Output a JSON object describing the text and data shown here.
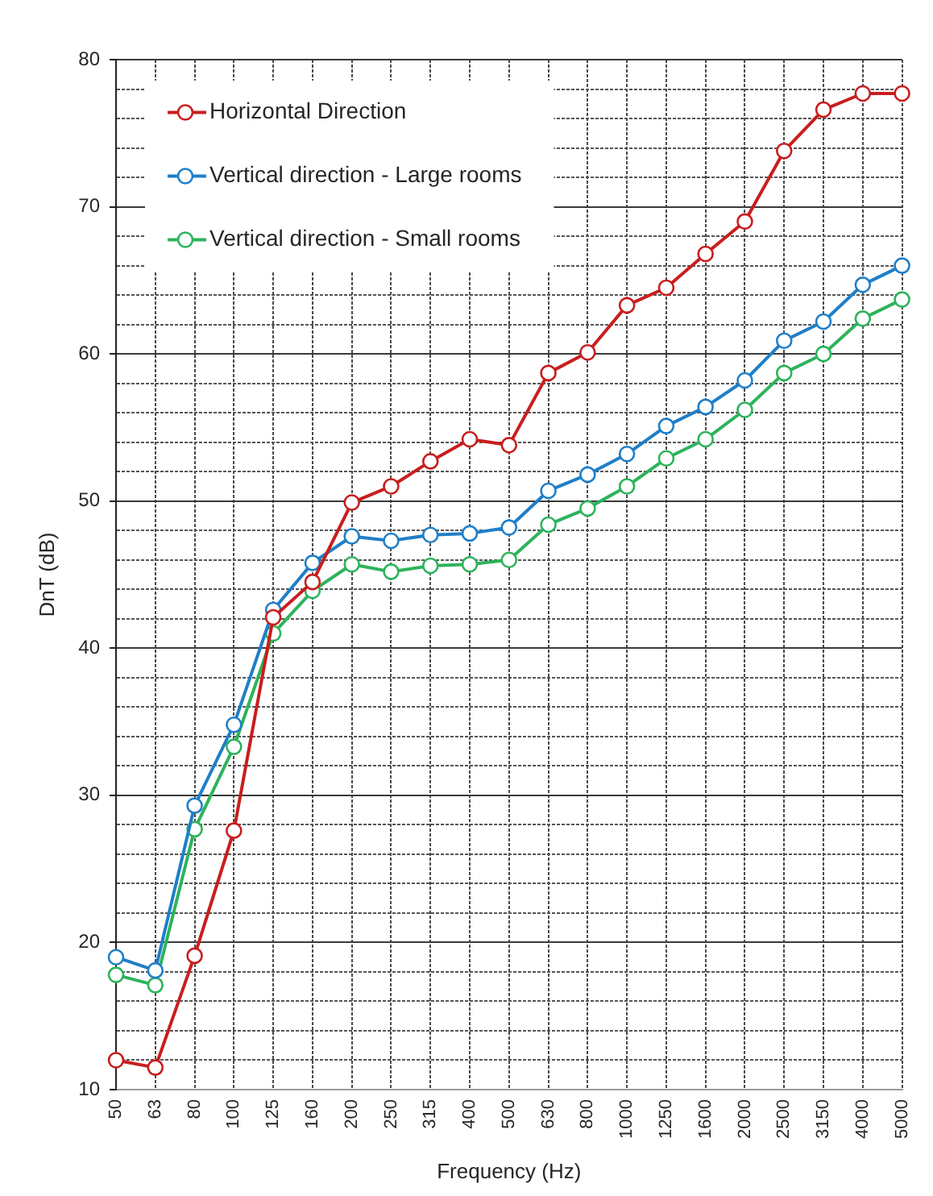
{
  "chart_data": {
    "type": "line",
    "xlabel": "Frequency (Hz)",
    "ylabel": "DnT (dB)",
    "categories": [
      "50",
      "63",
      "80",
      "100",
      "125",
      "160",
      "200",
      "250",
      "315",
      "400",
      "500",
      "630",
      "800",
      "1000",
      "1250",
      "1600",
      "2000",
      "2500",
      "3150",
      "4000",
      "5000"
    ],
    "series": [
      {
        "name": "Horizontal Direction",
        "color": "#c81e1e",
        "values": [
          12.0,
          11.5,
          19.1,
          27.6,
          42.1,
          44.5,
          49.9,
          51.0,
          52.7,
          54.2,
          53.8,
          58.7,
          60.1,
          63.3,
          64.5,
          66.8,
          69.0,
          73.8,
          76.6,
          77.7,
          77.7
        ]
      },
      {
        "name": "Vertical direction - Large rooms",
        "color": "#1f7fc8",
        "values": [
          19.0,
          18.1,
          29.3,
          34.8,
          42.6,
          45.8,
          47.6,
          47.3,
          47.7,
          47.8,
          48.2,
          50.7,
          51.8,
          53.2,
          55.1,
          56.4,
          58.2,
          60.9,
          62.2,
          64.7,
          66.0
        ]
      },
      {
        "name": "Vertical direction - Small rooms",
        "color": "#2db35b",
        "values": [
          17.8,
          17.1,
          27.7,
          33.3,
          41.0,
          43.9,
          45.7,
          45.2,
          45.6,
          45.7,
          46.0,
          48.4,
          49.5,
          51.0,
          52.9,
          54.2,
          56.2,
          58.7,
          60.0,
          62.4,
          63.7
        ]
      }
    ],
    "ylim": [
      10,
      80
    ],
    "yticks": [
      10,
      {
        "value": 12,
        "label": null
      },
      {
        "value": 14,
        "label": null
      },
      {
        "value": 16,
        "label": null
      },
      {
        "value": 18,
        "label": null
      },
      20,
      {
        "value": 22,
        "label": null
      },
      {
        "value": 24,
        "label": null
      },
      {
        "value": 26,
        "label": null
      },
      {
        "value": 28,
        "label": null
      },
      30,
      {
        "value": 32,
        "label": null
      },
      {
        "value": 34,
        "label": null
      },
      {
        "value": 36,
        "label": null
      },
      {
        "value": 38,
        "label": null
      },
      40,
      {
        "value": 42,
        "label": null
      },
      {
        "value": 44,
        "label": null
      },
      {
        "value": 46,
        "label": null
      },
      {
        "value": 48,
        "label": null
      },
      50,
      {
        "value": 52,
        "label": null
      },
      {
        "value": 54,
        "label": null
      },
      {
        "value": 56,
        "label": null
      },
      {
        "value": 58,
        "label": null
      },
      60,
      {
        "value": 62,
        "label": null
      },
      {
        "value": 64,
        "label": null
      },
      {
        "value": 66,
        "label": null
      },
      {
        "value": 68,
        "label": null
      },
      70,
      {
        "value": 72,
        "label": null
      },
      {
        "value": 74,
        "label": null
      },
      {
        "value": 76,
        "label": null
      },
      {
        "value": 78,
        "label": null
      },
      80
    ],
    "grid": true,
    "legend": "top left",
    "marker": "circle",
    "line_style": "solid"
  }
}
